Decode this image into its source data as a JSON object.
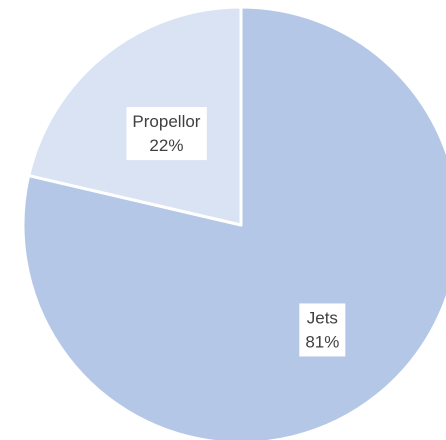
{
  "chart_data": {
    "type": "pie",
    "title": "",
    "categories": [
      "Jets",
      "Propellor"
    ],
    "values": [
      81,
      22
    ],
    "value_labels": [
      "81%",
      "22%"
    ],
    "colors": [
      "#b4c7e7",
      "#dae3f3"
    ],
    "label_box_color": "#ffffff",
    "edge_color": "#ffffff",
    "legend": "none",
    "start_angle_deg": 0,
    "direction": "clockwise"
  }
}
